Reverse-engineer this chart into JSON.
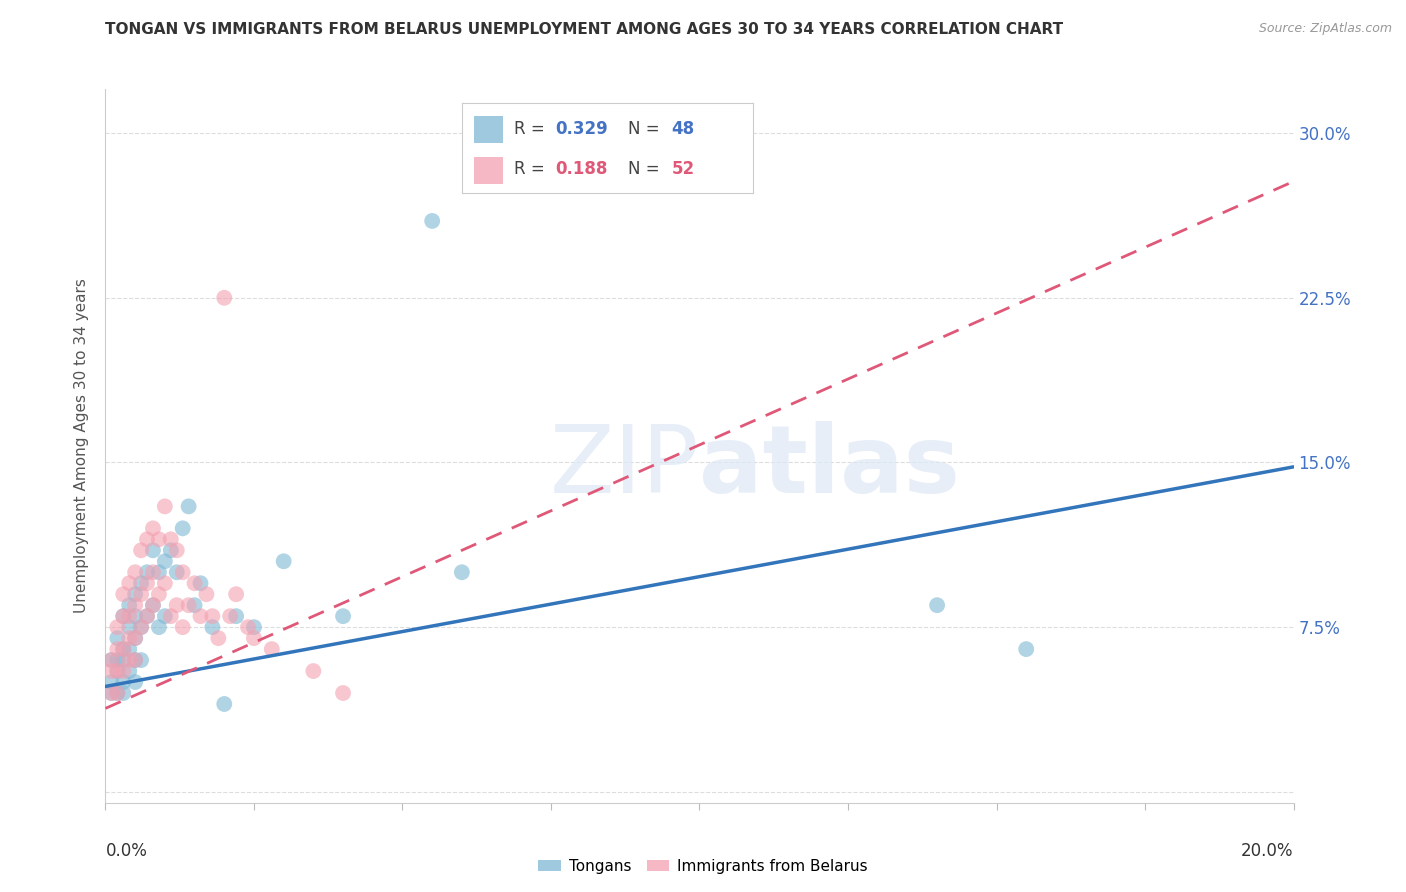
{
  "title": "TONGAN VS IMMIGRANTS FROM BELARUS UNEMPLOYMENT AMONG AGES 30 TO 34 YEARS CORRELATION CHART",
  "source": "Source: ZipAtlas.com",
  "ylabel": "Unemployment Among Ages 30 to 34 years",
  "xlim": [
    0.0,
    0.2
  ],
  "ylim": [
    -0.005,
    0.32
  ],
  "ytick_values": [
    0.0,
    0.075,
    0.15,
    0.225,
    0.3
  ],
  "ytick_labels": [
    "",
    "7.5%",
    "15.0%",
    "22.5%",
    "30.0%"
  ],
  "tongans_color": "#7EB8D4",
  "belarus_color": "#F4A0B0",
  "tongans_line_color": "#3375BB",
  "belarus_line_color": "#E05878",
  "background_color": "#ffffff",
  "grid_color": "#dddddd",
  "tongans_R": 0.329,
  "tongans_N": 48,
  "belarus_R": 0.188,
  "belarus_N": 52,
  "tongans_x": [
    0.001,
    0.001,
    0.001,
    0.002,
    0.002,
    0.002,
    0.002,
    0.003,
    0.003,
    0.003,
    0.003,
    0.003,
    0.004,
    0.004,
    0.004,
    0.004,
    0.005,
    0.005,
    0.005,
    0.005,
    0.005,
    0.006,
    0.006,
    0.006,
    0.007,
    0.007,
    0.008,
    0.008,
    0.009,
    0.009,
    0.01,
    0.01,
    0.011,
    0.012,
    0.013,
    0.014,
    0.015,
    0.016,
    0.018,
    0.02,
    0.022,
    0.025,
    0.03,
    0.04,
    0.055,
    0.06,
    0.14,
    0.155
  ],
  "tongans_y": [
    0.06,
    0.05,
    0.045,
    0.07,
    0.06,
    0.055,
    0.045,
    0.08,
    0.065,
    0.06,
    0.05,
    0.045,
    0.085,
    0.075,
    0.065,
    0.055,
    0.09,
    0.08,
    0.07,
    0.06,
    0.05,
    0.095,
    0.075,
    0.06,
    0.1,
    0.08,
    0.11,
    0.085,
    0.1,
    0.075,
    0.105,
    0.08,
    0.11,
    0.1,
    0.12,
    0.13,
    0.085,
    0.095,
    0.075,
    0.04,
    0.08,
    0.075,
    0.105,
    0.08,
    0.26,
    0.1,
    0.085,
    0.065
  ],
  "belarus_x": [
    0.001,
    0.001,
    0.001,
    0.002,
    0.002,
    0.002,
    0.002,
    0.003,
    0.003,
    0.003,
    0.003,
    0.004,
    0.004,
    0.004,
    0.004,
    0.005,
    0.005,
    0.005,
    0.005,
    0.006,
    0.006,
    0.006,
    0.007,
    0.007,
    0.007,
    0.008,
    0.008,
    0.008,
    0.009,
    0.009,
    0.01,
    0.01,
    0.011,
    0.011,
    0.012,
    0.012,
    0.013,
    0.013,
    0.014,
    0.015,
    0.016,
    0.017,
    0.018,
    0.019,
    0.02,
    0.021,
    0.022,
    0.024,
    0.025,
    0.028,
    0.035,
    0.04
  ],
  "belarus_y": [
    0.06,
    0.055,
    0.045,
    0.075,
    0.065,
    0.055,
    0.045,
    0.09,
    0.08,
    0.065,
    0.055,
    0.095,
    0.08,
    0.07,
    0.06,
    0.1,
    0.085,
    0.07,
    0.06,
    0.11,
    0.09,
    0.075,
    0.115,
    0.095,
    0.08,
    0.12,
    0.1,
    0.085,
    0.115,
    0.09,
    0.13,
    0.095,
    0.115,
    0.08,
    0.11,
    0.085,
    0.1,
    0.075,
    0.085,
    0.095,
    0.08,
    0.09,
    0.08,
    0.07,
    0.225,
    0.08,
    0.09,
    0.075,
    0.07,
    0.065,
    0.055,
    0.045
  ]
}
